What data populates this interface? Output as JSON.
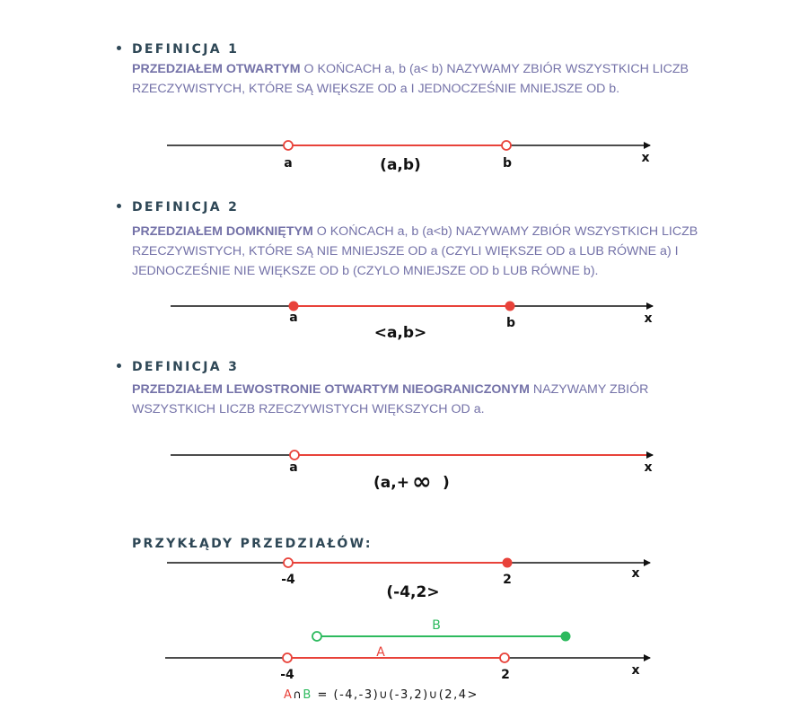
{
  "def1": {
    "heading": "DEFINICJA 1",
    "term": "PRZEDZIAŁEM OTWARTYM",
    "rest": " O KOŃCACH a, b (a< b) NAZYWAMY ZBIÓR WSZYSTKICH LICZB RZECZYWISTYCH, KTÓRE SĄ WIĘKSZE OD  a I JEDNOCZEŚNIE MNIEJSZE OD b.",
    "line": {
      "start_label": "a",
      "end_label": "b",
      "axis_label": "x",
      "notation": "(a,b)"
    }
  },
  "def2": {
    "heading": "DEFINICJA 2",
    "term": "PRZEDZIAŁEM  DOMKNIĘTYM",
    "rest": " O KOŃCACH a, b (a<b) NAZYWAMY ZBIÓR WSZYSTKICH LICZB RZECZYWISTYCH, KTÓRE SĄ NIE MNIEJSZE OD a (CZYLI WIĘKSZE OD a LUB RÓWNE a) I JEDNOCZEŚNIE NIE WIĘKSZE OD b (CZYLO MNIEJSZE OD b LUB RÓWNE b).",
    "line": {
      "start_label": "a",
      "end_label": "b",
      "axis_label": "x",
      "notation": "<a,b>"
    }
  },
  "def3": {
    "heading": "DEFINICJA 3",
    "term": "PRZEDZIAŁEM LEWOSTRONIE OTWARTYM NIEOGRANICZONYM",
    "rest": " NAZYWAMY ZBIÓR WSZYSTKICH LICZB RZECZYWISTYCH WIĘKSZYCH OD a.",
    "line": {
      "start_label": "a",
      "axis_label": "x",
      "notation_left": "(a,+",
      "infinity": "∞",
      "notation_right": ")"
    }
  },
  "examples": {
    "heading": "PRZYKŁĄDY PRZEDZIAŁÓW:",
    "ex1": {
      "start_label": "-4",
      "end_label": "2",
      "axis_label": "x",
      "notation": "(-4,2>"
    },
    "ex2": {
      "set_b_label": "B",
      "set_a_label": "A",
      "start_label": "-4",
      "end_label": "2",
      "axis_label": "x",
      "op_a": "A",
      "op_symbol": "∩",
      "op_b": "B",
      "op_result": " = (-4,-3)∪(-3,2)∪(2,4>"
    }
  },
  "colors": {
    "interval": "#e8423a",
    "setB": "#2dba5e",
    "axis": "#111111",
    "text": "#7472a8",
    "heading": "#2e4756"
  }
}
